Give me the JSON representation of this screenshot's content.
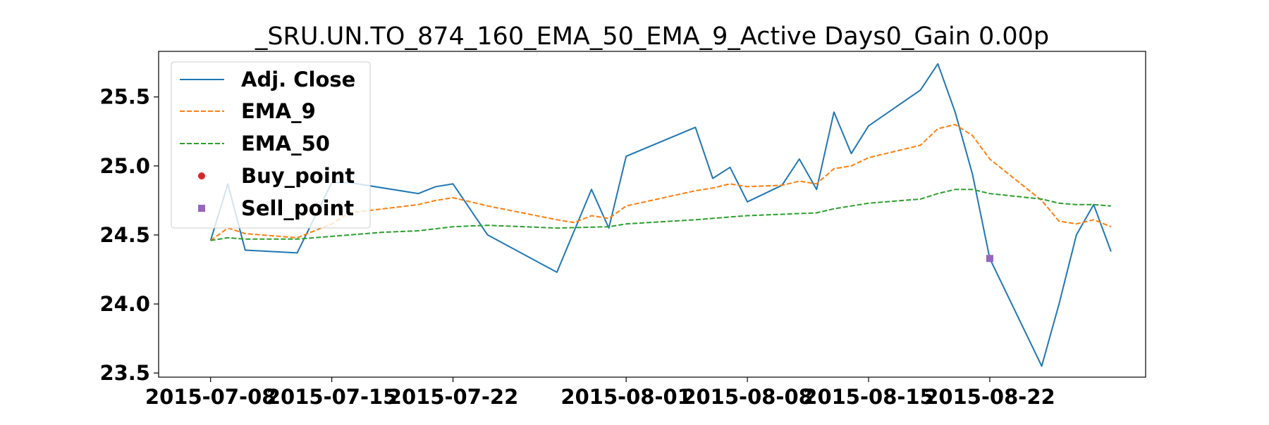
{
  "chart_data": {
    "type": "line",
    "title": "_SRU.UN.TO_874_160_EMA_50_EMA_9_Active Days0_Gain   0.00p",
    "xlabel": "",
    "ylabel": "",
    "x_tick_labels": [
      "2015-07-08",
      "2015-07-15",
      "2015-07-22",
      "2015-08-01",
      "2015-08-08",
      "2015-08-15",
      "2015-08-22"
    ],
    "x_tick_dates": [
      "2015-07-08",
      "2015-07-15",
      "2015-07-22",
      "2015-08-01",
      "2015-08-08",
      "2015-08-15",
      "2015-08-22"
    ],
    "x_range": [
      "2015-07-05",
      "2015-08-31"
    ],
    "ylim": [
      23.47,
      25.83
    ],
    "y_ticks": [
      "23.5",
      "24.0",
      "24.5",
      "25.0",
      "25.5"
    ],
    "grid": false,
    "legend_position": "upper-left",
    "colors": {
      "adj_close": "#1f77b4",
      "ema_9": "#ff7f0e",
      "ema_50": "#2ca02c",
      "buy": "#d62728",
      "sell": "#9467bd"
    },
    "legend": [
      "Adj. Close",
      "EMA_9",
      "EMA_50",
      "Buy_point",
      "Sell_point"
    ],
    "series": [
      {
        "name": "Adj. Close",
        "style": "solid",
        "points": [
          [
            "2015-07-08",
            24.46
          ],
          [
            "2015-07-09",
            24.87
          ],
          [
            "2015-07-10",
            24.39
          ],
          [
            "2015-07-13",
            24.37
          ],
          [
            "2015-07-15",
            24.88
          ],
          [
            "2015-07-16",
            24.88
          ],
          [
            "2015-07-20",
            24.8
          ],
          [
            "2015-07-21",
            24.85
          ],
          [
            "2015-07-22",
            24.87
          ],
          [
            "2015-07-24",
            24.5
          ],
          [
            "2015-07-28",
            24.23
          ],
          [
            "2015-07-30",
            24.83
          ],
          [
            "2015-07-31",
            24.55
          ],
          [
            "2015-08-01",
            25.07
          ],
          [
            "2015-08-05",
            25.28
          ],
          [
            "2015-08-06",
            24.91
          ],
          [
            "2015-08-07",
            24.99
          ],
          [
            "2015-08-08",
            24.74
          ],
          [
            "2015-08-10",
            24.86
          ],
          [
            "2015-08-11",
            25.05
          ],
          [
            "2015-08-12",
            24.83
          ],
          [
            "2015-08-13",
            25.39
          ],
          [
            "2015-08-14",
            25.09
          ],
          [
            "2015-08-15",
            25.29
          ],
          [
            "2015-08-18",
            25.55
          ],
          [
            "2015-08-19",
            25.74
          ],
          [
            "2015-08-20",
            25.39
          ],
          [
            "2015-08-21",
            24.94
          ],
          [
            "2015-08-22",
            24.33
          ],
          [
            "2015-08-25",
            23.55
          ],
          [
            "2015-08-26",
            24.0
          ],
          [
            "2015-08-27",
            24.5
          ],
          [
            "2015-08-28",
            24.72
          ],
          [
            "2015-08-29",
            24.38
          ]
        ]
      },
      {
        "name": "EMA_9",
        "style": "dashed",
        "points": [
          [
            "2015-07-08",
            24.46
          ],
          [
            "2015-07-09",
            24.55
          ],
          [
            "2015-07-10",
            24.51
          ],
          [
            "2015-07-13",
            24.48
          ],
          [
            "2015-07-15",
            24.58
          ],
          [
            "2015-07-16",
            24.66
          ],
          [
            "2015-07-20",
            24.72
          ],
          [
            "2015-07-21",
            24.75
          ],
          [
            "2015-07-22",
            24.77
          ],
          [
            "2015-07-24",
            24.71
          ],
          [
            "2015-07-28",
            24.61
          ],
          [
            "2015-07-29",
            24.59
          ],
          [
            "2015-07-30",
            24.64
          ],
          [
            "2015-07-31",
            24.62
          ],
          [
            "2015-08-01",
            24.71
          ],
          [
            "2015-08-05",
            24.82
          ],
          [
            "2015-08-06",
            24.84
          ],
          [
            "2015-08-07",
            24.87
          ],
          [
            "2015-08-08",
            24.85
          ],
          [
            "2015-08-10",
            24.86
          ],
          [
            "2015-08-11",
            24.89
          ],
          [
            "2015-08-12",
            24.87
          ],
          [
            "2015-08-13",
            24.98
          ],
          [
            "2015-08-14",
            25.0
          ],
          [
            "2015-08-15",
            25.06
          ],
          [
            "2015-08-18",
            25.15
          ],
          [
            "2015-08-19",
            25.27
          ],
          [
            "2015-08-20",
            25.3
          ],
          [
            "2015-08-21",
            25.22
          ],
          [
            "2015-08-22",
            25.05
          ],
          [
            "2015-08-25",
            24.75
          ],
          [
            "2015-08-26",
            24.6
          ],
          [
            "2015-08-27",
            24.58
          ],
          [
            "2015-08-28",
            24.61
          ],
          [
            "2015-08-29",
            24.56
          ]
        ]
      },
      {
        "name": "EMA_50",
        "style": "dashed",
        "points": [
          [
            "2015-07-08",
            24.46
          ],
          [
            "2015-07-09",
            24.48
          ],
          [
            "2015-07-10",
            24.47
          ],
          [
            "2015-07-13",
            24.47
          ],
          [
            "2015-07-15",
            24.49
          ],
          [
            "2015-07-16",
            24.5
          ],
          [
            "2015-07-18",
            24.52
          ],
          [
            "2015-07-20",
            24.53
          ],
          [
            "2015-07-22",
            24.56
          ],
          [
            "2015-07-24",
            24.57
          ],
          [
            "2015-07-28",
            24.55
          ],
          [
            "2015-07-31",
            24.56
          ],
          [
            "2015-08-01",
            24.58
          ],
          [
            "2015-08-05",
            24.61
          ],
          [
            "2015-08-07",
            24.63
          ],
          [
            "2015-08-08",
            24.64
          ],
          [
            "2015-08-12",
            24.66
          ],
          [
            "2015-08-13",
            24.69
          ],
          [
            "2015-08-14",
            24.71
          ],
          [
            "2015-08-15",
            24.73
          ],
          [
            "2015-08-18",
            24.76
          ],
          [
            "2015-08-19",
            24.8
          ],
          [
            "2015-08-20",
            24.83
          ],
          [
            "2015-08-21",
            24.83
          ],
          [
            "2015-08-22",
            24.8
          ],
          [
            "2015-08-25",
            24.76
          ],
          [
            "2015-08-26",
            24.73
          ],
          [
            "2015-08-27",
            24.72
          ],
          [
            "2015-08-28",
            24.72
          ],
          [
            "2015-08-29",
            24.71
          ]
        ]
      }
    ],
    "buy_points": [],
    "sell_points": [
      [
        "2015-08-22",
        24.33
      ]
    ]
  }
}
